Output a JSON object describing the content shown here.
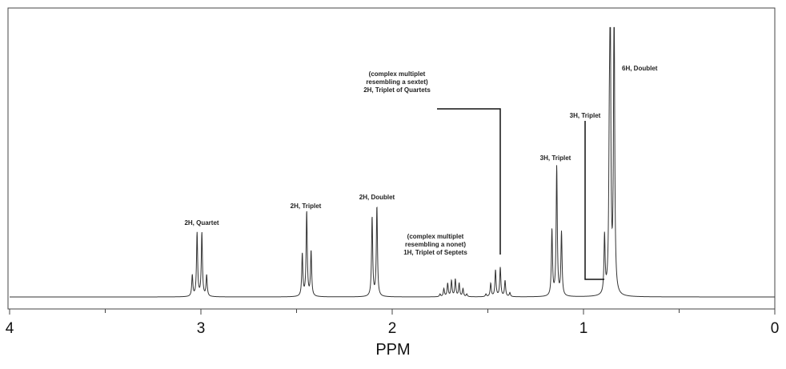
{
  "chart_data": {
    "type": "line",
    "title": "",
    "xlabel": "PPM",
    "ylabel": "",
    "xlim": [
      4,
      0
    ],
    "x_reversed": true,
    "x_ticks": [
      4,
      3,
      2,
      1,
      0
    ],
    "x_tick_labels": [
      "4",
      "3",
      "2",
      "1",
      "0"
    ],
    "grid": false,
    "legend": "none",
    "line_color": "#333333",
    "signals": [
      {
        "label": "2H, Quartet",
        "peaks": [
          {
            "ppm": 3.045,
            "height": 0.08
          },
          {
            "ppm": 3.02,
            "height": 0.24
          },
          {
            "ppm": 2.995,
            "height": 0.24
          },
          {
            "ppm": 2.97,
            "height": 0.08
          }
        ]
      },
      {
        "label": "2H, Triplet",
        "peaks": [
          {
            "ppm": 2.47,
            "height": 0.16
          },
          {
            "ppm": 2.447,
            "height": 0.32
          },
          {
            "ppm": 2.424,
            "height": 0.17
          }
        ]
      },
      {
        "label": "2H, Doublet",
        "peaks": [
          {
            "ppm": 2.105,
            "height": 0.3
          },
          {
            "ppm": 2.08,
            "height": 0.34
          }
        ]
      },
      {
        "label": "(complex multiplet\nresembling a nonet)\n1H, Triplet of Septets",
        "peaks": [
          {
            "ppm": 1.75,
            "height": 0.01
          },
          {
            "ppm": 1.73,
            "height": 0.03
          },
          {
            "ppm": 1.71,
            "height": 0.05
          },
          {
            "ppm": 1.69,
            "height": 0.06
          },
          {
            "ppm": 1.67,
            "height": 0.065
          },
          {
            "ppm": 1.65,
            "height": 0.05
          },
          {
            "ppm": 1.63,
            "height": 0.03
          },
          {
            "ppm": 1.61,
            "height": 0.01
          }
        ]
      },
      {
        "label": "(complex multiplet\nresembling a sextet)\n2H, Triplet of Quartets",
        "peaks": [
          {
            "ppm": 1.51,
            "height": 0.01
          },
          {
            "ppm": 1.485,
            "height": 0.05
          },
          {
            "ppm": 1.46,
            "height": 0.1
          },
          {
            "ppm": 1.435,
            "height": 0.11
          },
          {
            "ppm": 1.41,
            "height": 0.06
          },
          {
            "ppm": 1.385,
            "height": 0.015
          }
        ]
      },
      {
        "label": "3H, Triplet",
        "peaks": [
          {
            "ppm": 1.165,
            "height": 0.25
          },
          {
            "ppm": 1.14,
            "height": 0.49
          },
          {
            "ppm": 1.115,
            "height": 0.24
          }
        ]
      },
      {
        "label": "3H, Triplet",
        "peaks": [
          {
            "ppm": 0.89,
            "height": 0.22
          },
          {
            "ppm": 0.865,
            "height": 0.44
          },
          {
            "ppm": 0.84,
            "height": 0.2
          }
        ]
      },
      {
        "label": "6H, Doublet",
        "peaks": [
          {
            "ppm": 0.86,
            "height": 1.0
          },
          {
            "ppm": 0.84,
            "height": 0.96
          }
        ]
      }
    ]
  }
}
